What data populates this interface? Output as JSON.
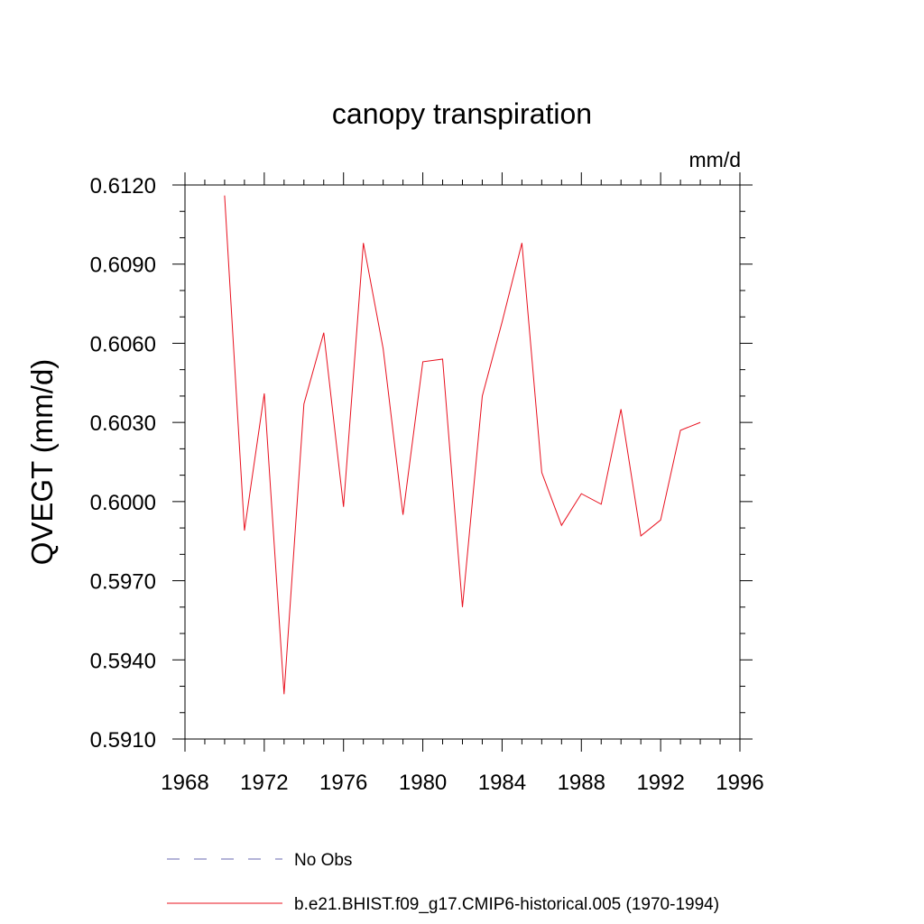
{
  "chart_data": {
    "type": "line",
    "title": "canopy transpiration",
    "units": "mm/d",
    "ylabel": "QVEGT  (mm/d)",
    "xlim": [
      1968,
      1996
    ],
    "ylim": [
      0.591,
      0.612
    ],
    "x_ticks": [
      "1968",
      "1972",
      "1976",
      "1980",
      "1984",
      "1988",
      "1992",
      "1996"
    ],
    "y_ticks": [
      "0.5910",
      "0.5940",
      "0.5970",
      "0.6000",
      "0.6030",
      "0.6060",
      "0.6090",
      "0.6120"
    ],
    "grid": false,
    "legend_placement": "bottom",
    "legend": [
      {
        "label": "No Obs",
        "color": "#6a6ab0",
        "style": "dashed"
      },
      {
        "label": "b.e21.BHIST.f09_g17.CMIP6-historical.005 (1970-1994)",
        "color": "#e8101e",
        "style": "solid"
      }
    ],
    "series": [
      {
        "color": "#e8101e",
        "x": [
          1970,
          1971,
          1972,
          1973,
          1974,
          1975,
          1976,
          1977,
          1978,
          1979,
          1980,
          1981,
          1982,
          1983,
          1984,
          1985,
          1986,
          1987,
          1988,
          1989,
          1990,
          1991,
          1992,
          1993,
          1994
        ],
        "y": [
          0.6116,
          0.5989,
          0.6041,
          0.5927,
          0.6037,
          0.6064,
          0.5998,
          0.6098,
          0.6058,
          0.5995,
          0.6053,
          0.6054,
          0.596,
          0.604,
          0.6068,
          0.6098,
          0.6011,
          0.5991,
          0.6003,
          0.5999,
          0.6035,
          0.5987,
          0.5993,
          0.6027,
          0.603
        ]
      }
    ]
  }
}
